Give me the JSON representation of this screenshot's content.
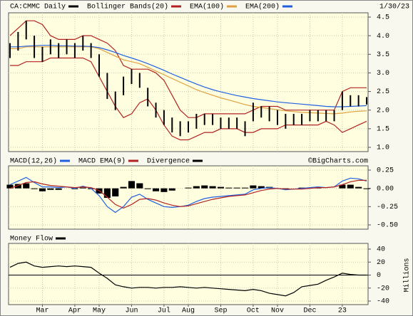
{
  "chart_data": [
    {
      "type": "ohlc",
      "title": "CA:CMMC Daily",
      "date": "1/30/23",
      "color": "#000000",
      "high": [
        3.8,
        4.1,
        4.4,
        4.0,
        3.7,
        3.9,
        3.8,
        3.9,
        3.8,
        4.0,
        3.8,
        3.5,
        3.0,
        2.5,
        2.9,
        3.1,
        3.0,
        2.6,
        2.2,
        2.0,
        1.8,
        1.7,
        1.7,
        1.9,
        1.9,
        1.9,
        1.8,
        1.8,
        1.8,
        1.7,
        2.2,
        2.1,
        2.1,
        2.0,
        1.9,
        1.9,
        1.9,
        2.0,
        2.0,
        2.0,
        2.0,
        2.5,
        2.4,
        2.4,
        2.35
      ],
      "low": [
        3.4,
        3.6,
        3.9,
        3.4,
        3.3,
        3.5,
        3.4,
        3.5,
        3.4,
        3.6,
        3.4,
        2.9,
        2.3,
        2.0,
        2.4,
        2.7,
        2.6,
        2.1,
        1.8,
        1.6,
        1.4,
        1.3,
        1.4,
        1.5,
        1.6,
        1.6,
        1.5,
        1.5,
        1.5,
        1.3,
        1.7,
        1.8,
        1.7,
        1.6,
        1.5,
        1.6,
        1.6,
        1.7,
        1.7,
        1.7,
        1.7,
        2.0,
        2.1,
        2.1,
        2.15
      ],
      "series": [
        {
          "name": "Bollinger Bands(20)",
          "color": "#b22222",
          "upper": [
            4.0,
            4.2,
            4.4,
            4.4,
            4.3,
            4.0,
            3.9,
            3.9,
            3.9,
            4.0,
            4.0,
            3.9,
            3.8,
            3.6,
            3.2,
            3.1,
            3.1,
            3.1,
            3.0,
            2.8,
            2.4,
            2.0,
            1.8,
            1.8,
            1.9,
            1.9,
            1.9,
            1.9,
            1.9,
            1.9,
            2.0,
            2.1,
            2.1,
            2.1,
            2.0,
            2.0,
            2.0,
            2.0,
            2.0,
            2.0,
            2.0,
            2.5,
            2.6,
            2.6,
            2.6
          ],
          "lower": [
            3.2,
            3.2,
            3.3,
            3.3,
            3.3,
            3.4,
            3.4,
            3.4,
            3.4,
            3.4,
            3.3,
            2.9,
            2.5,
            2.1,
            1.8,
            1.9,
            2.2,
            2.3,
            2.0,
            1.6,
            1.3,
            1.2,
            1.2,
            1.3,
            1.4,
            1.4,
            1.5,
            1.5,
            1.5,
            1.4,
            1.4,
            1.5,
            1.5,
            1.5,
            1.6,
            1.6,
            1.6,
            1.6,
            1.6,
            1.7,
            1.6,
            1.4,
            1.5,
            1.6,
            1.7
          ]
        },
        {
          "name": "EMA(100)",
          "color": "#e0a040",
          "values": [
            3.65,
            3.65,
            3.7,
            3.7,
            3.7,
            3.7,
            3.7,
            3.7,
            3.7,
            3.7,
            3.7,
            3.65,
            3.55,
            3.45,
            3.35,
            3.3,
            3.25,
            3.15,
            3.05,
            2.95,
            2.85,
            2.75,
            2.65,
            2.55,
            2.47,
            2.4,
            2.33,
            2.27,
            2.21,
            2.15,
            2.1,
            2.07,
            2.04,
            2.01,
            1.98,
            1.96,
            1.94,
            1.93,
            1.92,
            1.91,
            1.9,
            1.92,
            1.95,
            1.97,
            1.98
          ]
        },
        {
          "name": "EMA(200)",
          "color": "#2060e0",
          "values": [
            3.7,
            3.7,
            3.72,
            3.73,
            3.74,
            3.74,
            3.73,
            3.73,
            3.72,
            3.72,
            3.71,
            3.68,
            3.62,
            3.55,
            3.47,
            3.4,
            3.33,
            3.25,
            3.16,
            3.07,
            2.97,
            2.88,
            2.79,
            2.7,
            2.62,
            2.55,
            2.49,
            2.44,
            2.39,
            2.35,
            2.31,
            2.28,
            2.25,
            2.22,
            2.2,
            2.18,
            2.16,
            2.14,
            2.12,
            2.1,
            2.09,
            2.09,
            2.1,
            2.11,
            2.12
          ]
        }
      ],
      "ylim": [
        1,
        4.5
      ],
      "yticks": [
        4.5,
        {
          "value": 4,
          "label": "4.0"
        },
        3.5,
        {
          "value": 3,
          "label": "3.0"
        },
        2.5,
        {
          "value": 2,
          "label": "2.0"
        },
        1.5,
        {
          "value": 1,
          "label": "1.0"
        }
      ],
      "grid": true
    },
    {
      "type": "macd",
      "annotation": "©BigCharts.com",
      "series": [
        {
          "name": "MACD(12,26)",
          "color": "#2060e0",
          "values": [
            0.05,
            0.1,
            0.15,
            0.08,
            0.02,
            0.02,
            0.01,
            0.02,
            0.0,
            0.03,
            0.0,
            -0.1,
            -0.25,
            -0.33,
            -0.25,
            -0.12,
            -0.08,
            -0.15,
            -0.2,
            -0.25,
            -0.26,
            -0.25,
            -0.23,
            -0.18,
            -0.14,
            -0.12,
            -0.11,
            -0.1,
            -0.09,
            -0.08,
            -0.02,
            0.0,
            0.01,
            0.0,
            -0.02,
            -0.01,
            0.0,
            0.01,
            0.02,
            0.01,
            0.02,
            0.1,
            0.14,
            0.13,
            0.1
          ]
        },
        {
          "name": "MACD EMA(9)",
          "color": "#b22222",
          "values": [
            0.0,
            0.04,
            0.08,
            0.09,
            0.06,
            0.04,
            0.03,
            0.02,
            0.01,
            0.02,
            0.01,
            -0.03,
            -0.12,
            -0.22,
            -0.27,
            -0.22,
            -0.15,
            -0.14,
            -0.16,
            -0.2,
            -0.23,
            -0.25,
            -0.24,
            -0.21,
            -0.18,
            -0.15,
            -0.13,
            -0.11,
            -0.1,
            -0.09,
            -0.06,
            -0.03,
            -0.01,
            0.0,
            -0.01,
            -0.01,
            -0.01,
            0.0,
            0.01,
            0.01,
            0.02,
            0.05,
            0.09,
            0.11,
            0.11
          ]
        },
        {
          "name": "Divergence",
          "color": "#000000",
          "values": [
            0.05,
            0.06,
            0.07,
            -0.01,
            -0.04,
            -0.02,
            -0.02,
            0,
            -0.01,
            0.01,
            -0.01,
            -0.07,
            -0.13,
            -0.11,
            0.02,
            0.1,
            0.07,
            -0.01,
            -0.04,
            -0.05,
            -0.03,
            0,
            0.01,
            0.03,
            0.04,
            0.03,
            0.02,
            0.01,
            0.01,
            0.01,
            0.04,
            0.03,
            0.02,
            0,
            -0.01,
            0,
            0.01,
            0.01,
            0.01,
            0,
            0,
            0.05,
            0.05,
            0.02,
            -0.01
          ]
        }
      ],
      "ylim": [
        -0.5,
        0.25
      ],
      "yticks": [
        0.25,
        {
          "value": 0,
          "label": "0.00"
        },
        -0.25,
        {
          "value": -0.5,
          "label": "-0.50"
        }
      ],
      "grid": true
    },
    {
      "type": "line",
      "ylabel": "Millions",
      "series": [
        {
          "name": "Money Flow",
          "color": "#000000",
          "values": [
            12,
            18,
            20,
            14,
            12,
            13,
            14,
            13,
            14,
            13,
            12,
            3,
            -5,
            -15,
            -18,
            -20,
            -19,
            -19,
            -20,
            -19,
            -19,
            -18,
            -19,
            -20,
            -19,
            -20,
            -21,
            -22,
            -23,
            -24,
            -22,
            -24,
            -28,
            -30,
            -32,
            -27,
            -18,
            -16,
            -14,
            -8,
            -3,
            3,
            1,
            0,
            0
          ]
        }
      ],
      "ylim": [
        -40,
        40
      ],
      "yticks": [
        40,
        20,
        0,
        -20,
        -40
      ],
      "xlim": [
        0,
        44
      ],
      "xticks": [
        {
          "value": 4,
          "label": "Mar"
        },
        {
          "value": 8,
          "label": "Apr"
        },
        {
          "value": 11,
          "label": "May"
        },
        {
          "value": 15,
          "label": "Jun"
        },
        {
          "value": 19,
          "label": "Jul"
        },
        {
          "value": 22,
          "label": "Aug"
        },
        {
          "value": 26,
          "label": "Sep"
        },
        {
          "value": 30,
          "label": "Oct"
        },
        {
          "value": 33,
          "label": "Nov"
        },
        {
          "value": 37,
          "label": "Dec"
        },
        {
          "value": 41,
          "label": "23"
        }
      ],
      "grid": true
    }
  ]
}
